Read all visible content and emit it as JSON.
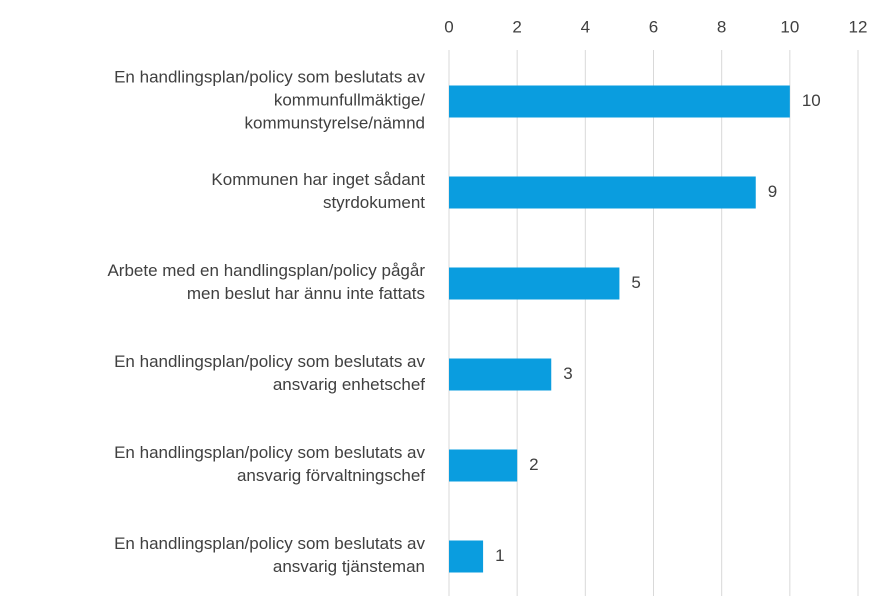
{
  "chart_data": {
    "type": "barh",
    "categories": [
      "En handlingsplan/policy som beslutats av\nkommunfullmäktige/\nkommunstyrelse/nämnd",
      "Kommunen har inget sådant\nstyrdokument",
      "Arbete med en handlingsplan/policy pågår\nmen beslut har ännu inte fattats",
      "En handlingsplan/policy som beslutats av\nansvarig enhetschef",
      "En handlingsplan/policy som beslutats av\nansvarig förvaltningschef",
      "En handlingsplan/policy som beslutats av\nansvarig tjänsteman"
    ],
    "values": [
      10,
      9,
      5,
      3,
      2,
      1
    ],
    "color": "#0a9ddf",
    "xlim": [
      0,
      12
    ],
    "xticks": [
      0,
      2,
      4,
      6,
      8,
      10,
      12
    ],
    "grid": true
  }
}
